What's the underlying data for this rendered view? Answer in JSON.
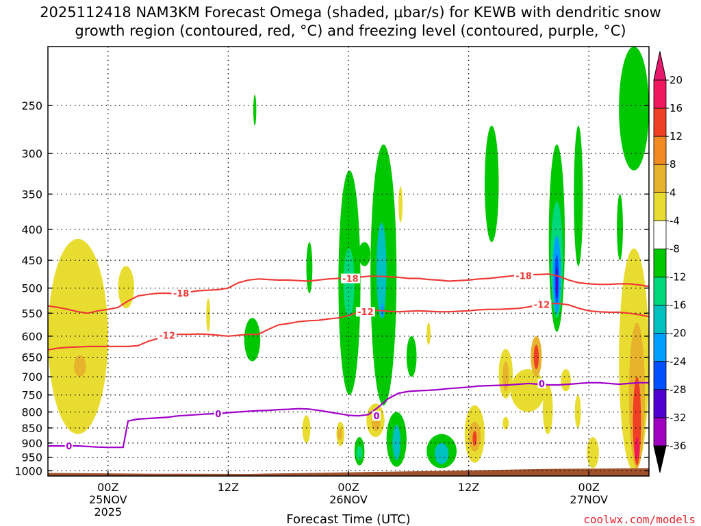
{
  "title_line1": "2025112418 NAM3KM Forecast Omega (shaded, μbar/s) for KEWB with dendritic snow",
  "title_line2": "growth region (contoured, red, °C) and freezing level (contoured, purple, °C)",
  "credit": "coolwx.com/models",
  "chart_data": {
    "type": "heatmap",
    "title": "2025112418 NAM3KM Forecast Omega (shaded, μbar/s) for KEWB with dendritic snow growth region (contoured, red, °C) and freezing level (contoured, purple, °C)",
    "xlabel": "Forecast Time (UTC)",
    "ylabel": "",
    "x_unit": "forecast hour from 2025112418",
    "xlim": [
      0,
      60
    ],
    "y_scale": "log (pressure, hPa)",
    "ylim": [
      1020,
      200
    ],
    "grid": true,
    "x_ticks": [
      {
        "x": 6,
        "label": "00Z",
        "sub": "25NOV",
        "sub2": "2025"
      },
      {
        "x": 18,
        "label": "12Z",
        "sub": "",
        "sub2": ""
      },
      {
        "x": 30,
        "label": "00Z",
        "sub": "26NOV",
        "sub2": ""
      },
      {
        "x": 42,
        "label": "12Z",
        "sub": "",
        "sub2": ""
      },
      {
        "x": 54,
        "label": "00Z",
        "sub": "27NOV",
        "sub2": ""
      }
    ],
    "y_ticks": [
      250,
      300,
      350,
      400,
      450,
      500,
      550,
      600,
      650,
      700,
      750,
      800,
      850,
      900,
      950,
      1000
    ],
    "colorbar": {
      "unit": "μbar/s",
      "ticks": [
        "20",
        "16",
        "12",
        "8",
        "4",
        "-4",
        "-8",
        "-12",
        "-16",
        "-20",
        "-24",
        "-28",
        "-32",
        "-36"
      ],
      "colors": [
        "#f0185c",
        "#ef4026",
        "#f28a22",
        "#e7b22c",
        "#e8dc30",
        "#ffffff",
        "#00c800",
        "#00d87a",
        "#00c0c0",
        "#00a0ff",
        "#0050ff",
        "#5000d0",
        "#a000c0",
        "#b4b4b4"
      ],
      "top_arrow_color": "#e8186c",
      "bottom_arrow_color": "#000000"
    },
    "series": [
      {
        "name": "-18",
        "color": "#ee3a36",
        "x": [
          0,
          1,
          2,
          3,
          4,
          5,
          6,
          7,
          8,
          9,
          10,
          11,
          12,
          13,
          14,
          15,
          16,
          17,
          18,
          19,
          20,
          21,
          22,
          23,
          24,
          25,
          26,
          27,
          28,
          29,
          30,
          31,
          32,
          33,
          34,
          35,
          36,
          37,
          38,
          39,
          40,
          41,
          42,
          43,
          44,
          45,
          46,
          47,
          48,
          49,
          50,
          51,
          52,
          53,
          54,
          55,
          56,
          57,
          58,
          59,
          60
        ],
        "y": [
          535,
          538,
          542,
          547,
          550,
          545,
          542,
          538,
          525,
          515,
          512,
          510,
          510,
          511,
          508,
          505,
          504,
          503,
          500,
          490,
          485,
          483,
          484,
          485,
          485,
          486,
          487,
          485,
          483,
          482,
          482,
          480,
          478,
          478,
          479,
          480,
          482,
          482,
          484,
          485,
          487,
          486,
          485,
          483,
          482,
          480,
          478,
          476,
          475,
          475,
          474,
          478,
          485,
          490,
          492,
          493,
          493,
          492,
          492,
          494,
          497
        ]
      },
      {
        "name": "-12",
        "color": "#ee3a36",
        "x": [
          0,
          1,
          2,
          3,
          4,
          5,
          6,
          7,
          8,
          9,
          10,
          11,
          12,
          13,
          14,
          15,
          16,
          17,
          18,
          19,
          20,
          21,
          22,
          23,
          24,
          25,
          26,
          27,
          28,
          29,
          30,
          31,
          32,
          33,
          34,
          35,
          36,
          37,
          38,
          39,
          40,
          41,
          42,
          43,
          44,
          45,
          46,
          47,
          48,
          49,
          50,
          51,
          52,
          53,
          54,
          55,
          56,
          57,
          58,
          59,
          60
        ],
        "y": [
          632,
          628,
          626,
          625,
          624,
          624,
          624,
          624,
          624,
          622,
          612,
          605,
          598,
          596,
          596,
          595,
          596,
          598,
          600,
          598,
          596,
          596,
          585,
          575,
          572,
          568,
          566,
          565,
          562,
          560,
          555,
          548,
          545,
          544,
          546,
          547,
          546,
          545,
          546,
          547,
          547,
          546,
          545,
          543,
          542,
          542,
          541,
          540,
          537,
          533,
          530,
          530,
          533,
          540,
          545,
          547,
          548,
          548,
          550,
          553,
          557
        ]
      },
      {
        "name": "0",
        "color": "#a000c8",
        "x": [
          0,
          1,
          2,
          3,
          4,
          5,
          6,
          7,
          7.5,
          8,
          9,
          10,
          11,
          12,
          13,
          14,
          15,
          16,
          17,
          18,
          19,
          20,
          21,
          22,
          23,
          24,
          25,
          26,
          27,
          28,
          29,
          30,
          31,
          32,
          33,
          34,
          35,
          36,
          37,
          38,
          39,
          40,
          41,
          42,
          43,
          44,
          45,
          46,
          47,
          48,
          49,
          50,
          51,
          52,
          53,
          54,
          55,
          56,
          57,
          58,
          59,
          60
        ],
        "y": [
          910,
          910,
          910,
          910,
          912,
          914,
          915,
          915,
          915,
          828,
          822,
          820,
          818,
          816,
          812,
          810,
          808,
          806,
          805,
          802,
          800,
          798,
          796,
          795,
          793,
          792,
          790,
          791,
          795,
          800,
          805,
          810,
          812,
          808,
          785,
          760,
          745,
          740,
          738,
          737,
          735,
          732,
          730,
          728,
          725,
          724,
          723,
          722,
          720,
          718,
          720,
          722,
          722,
          720,
          718,
          716,
          716,
          718,
          720,
          718,
          716,
          716
        ]
      }
    ],
    "contour_labels": [
      {
        "series": "-18",
        "text": "-18",
        "x": 13.3,
        "y": 510
      },
      {
        "series": "-18",
        "text": "-18",
        "x": 30.2,
        "y": 482
      },
      {
        "series": "-18",
        "text": "-18",
        "x": 47.5,
        "y": 477
      },
      {
        "series": "-12",
        "text": "-12",
        "x": 11.9,
        "y": 598
      },
      {
        "series": "-12",
        "text": "-12",
        "x": 31.7,
        "y": 547
      },
      {
        "series": "-12",
        "text": "-12",
        "x": 49.3,
        "y": 532
      },
      {
        "series": "0",
        "text": "0",
        "x": 2.1,
        "y": 910
      },
      {
        "series": "0",
        "text": "0",
        "x": 17.0,
        "y": 805
      },
      {
        "series": "0",
        "text": "0",
        "x": 32.8,
        "y": 812
      },
      {
        "series": "0",
        "text": "0",
        "x": 49.3,
        "y": 718
      }
    ],
    "omega_regions": [
      {
        "color": "#e8dc30",
        "x0": 0.0,
        "x1": 6.0,
        "y0": 415,
        "y1": 870
      },
      {
        "color": "#e7b22c",
        "x0": 2.6,
        "x1": 3.8,
        "y0": 645,
        "y1": 700
      },
      {
        "color": "#e8dc30",
        "x0": 7.0,
        "x1": 8.6,
        "y0": 460,
        "y1": 540
      },
      {
        "color": "#e8dc30",
        "x0": 15.8,
        "x1": 16.2,
        "y0": 520,
        "y1": 590
      },
      {
        "color": "#00c800",
        "x0": 20.5,
        "x1": 20.8,
        "y0": 240,
        "y1": 270
      },
      {
        "color": "#00c800",
        "x0": 19.6,
        "x1": 21.2,
        "y0": 560,
        "y1": 660
      },
      {
        "color": "#00c800",
        "x0": 25.8,
        "x1": 26.4,
        "y0": 420,
        "y1": 510
      },
      {
        "color": "#00c800",
        "x0": 29.0,
        "x1": 31.2,
        "y0": 320,
        "y1": 750
      },
      {
        "color": "#00d87a",
        "x0": 29.5,
        "x1": 30.6,
        "y0": 430,
        "y1": 560
      },
      {
        "color": "#00c800",
        "x0": 31.0,
        "x1": 32.2,
        "y0": 420,
        "y1": 460
      },
      {
        "color": "#00c800",
        "x0": 32.2,
        "x1": 34.8,
        "y0": 290,
        "y1": 780
      },
      {
        "color": "#00c0c0",
        "x0": 32.8,
        "x1": 33.8,
        "y0": 390,
        "y1": 560
      },
      {
        "color": "#00a0ff",
        "x0": 33.2,
        "x1": 33.6,
        "y0": 530,
        "y1": 560
      },
      {
        "color": "#e8dc30",
        "x0": 35.0,
        "x1": 35.4,
        "y0": 340,
        "y1": 390
      },
      {
        "color": "#00c800",
        "x0": 35.8,
        "x1": 36.8,
        "y0": 600,
        "y1": 700
      },
      {
        "color": "#e8dc30",
        "x0": 37.8,
        "x1": 38.2,
        "y0": 570,
        "y1": 620
      },
      {
        "color": "#00c800",
        "x0": 43.6,
        "x1": 45.0,
        "y0": 270,
        "y1": 420
      },
      {
        "color": "#00c800",
        "x0": 50.0,
        "x1": 51.6,
        "y0": 290,
        "y1": 590
      },
      {
        "color": "#00d87a",
        "x0": 50.2,
        "x1": 51.4,
        "y0": 360,
        "y1": 560
      },
      {
        "color": "#00a0ff",
        "x0": 50.4,
        "x1": 51.2,
        "y0": 410,
        "y1": 550
      },
      {
        "color": "#0050ff",
        "x0": 50.6,
        "x1": 51.0,
        "y0": 440,
        "y1": 530
      },
      {
        "color": "#5000d0",
        "x0": 50.7,
        "x1": 50.9,
        "y0": 460,
        "y1": 520
      },
      {
        "color": "#00c800",
        "x0": 52.5,
        "x1": 53.4,
        "y0": 270,
        "y1": 460
      },
      {
        "color": "#00c800",
        "x0": 56.8,
        "x1": 57.4,
        "y0": 350,
        "y1": 450
      },
      {
        "color": "#00c800",
        "x0": 57.0,
        "x1": 60.0,
        "y0": 200,
        "y1": 320
      },
      {
        "color": "#e8dc30",
        "x0": 25.4,
        "x1": 26.2,
        "y0": 810,
        "y1": 900
      },
      {
        "color": "#e8dc30",
        "x0": 28.8,
        "x1": 29.6,
        "y0": 830,
        "y1": 910
      },
      {
        "color": "#e7b22c",
        "x0": 28.9,
        "x1": 29.4,
        "y0": 850,
        "y1": 890
      },
      {
        "color": "#00c800",
        "x0": 30.6,
        "x1": 31.6,
        "y0": 880,
        "y1": 980
      },
      {
        "color": "#00d87a",
        "x0": 30.8,
        "x1": 31.4,
        "y0": 910,
        "y1": 960
      },
      {
        "color": "#e8dc30",
        "x0": 31.8,
        "x1": 33.6,
        "y0": 775,
        "y1": 880
      },
      {
        "color": "#e7b22c",
        "x0": 32.3,
        "x1": 33.2,
        "y0": 800,
        "y1": 860
      },
      {
        "color": "#00c800",
        "x0": 33.8,
        "x1": 35.8,
        "y0": 800,
        "y1": 985
      },
      {
        "color": "#00c0c0",
        "x0": 34.4,
        "x1": 35.2,
        "y0": 840,
        "y1": 960
      },
      {
        "color": "#00c800",
        "x0": 37.8,
        "x1": 40.8,
        "y0": 870,
        "y1": 990
      },
      {
        "color": "#00c0c0",
        "x0": 38.6,
        "x1": 40.0,
        "y0": 900,
        "y1": 975
      },
      {
        "color": "#e8dc30",
        "x0": 41.6,
        "x1": 43.6,
        "y0": 780,
        "y1": 970
      },
      {
        "color": "#e7b22c",
        "x0": 42.0,
        "x1": 43.2,
        "y0": 830,
        "y1": 930
      },
      {
        "color": "#ef4026",
        "x0": 42.4,
        "x1": 42.8,
        "y0": 860,
        "y1": 910
      },
      {
        "color": "#e8dc30",
        "x0": 45.0,
        "x1": 46.4,
        "y0": 630,
        "y1": 760
      },
      {
        "color": "#e7b22c",
        "x0": 45.4,
        "x1": 46.0,
        "y0": 660,
        "y1": 740
      },
      {
        "color": "#e8dc30",
        "x0": 46.2,
        "x1": 49.6,
        "y0": 680,
        "y1": 800
      },
      {
        "color": "#e7b22c",
        "x0": 48.2,
        "x1": 49.3,
        "y0": 600,
        "y1": 700
      },
      {
        "color": "#ef4026",
        "x0": 48.5,
        "x1": 49.0,
        "y0": 620,
        "y1": 680
      },
      {
        "color": "#e8dc30",
        "x0": 49.4,
        "x1": 50.4,
        "y0": 720,
        "y1": 870
      },
      {
        "color": "#e8dc30",
        "x0": 51.2,
        "x1": 52.2,
        "y0": 680,
        "y1": 740
      },
      {
        "color": "#e8dc30",
        "x0": 52.6,
        "x1": 53.2,
        "y0": 750,
        "y1": 850
      },
      {
        "color": "#e8dc30",
        "x0": 45.4,
        "x1": 46.0,
        "y0": 815,
        "y1": 855
      },
      {
        "color": "#e8dc30",
        "x0": 53.8,
        "x1": 55.0,
        "y0": 880,
        "y1": 990
      },
      {
        "color": "#e8dc30",
        "x0": 57.0,
        "x1": 60.0,
        "y0": 430,
        "y1": 1000
      },
      {
        "color": "#e7b22c",
        "x0": 58.0,
        "x1": 59.6,
        "y0": 570,
        "y1": 990
      },
      {
        "color": "#ef4026",
        "x0": 58.4,
        "x1": 59.2,
        "y0": 700,
        "y1": 980
      },
      {
        "color": "#f0185c",
        "x0": 58.6,
        "x1": 59.0,
        "y0": 880,
        "y1": 960
      }
    ],
    "terrain": {
      "color": "#a0522d",
      "x": [
        0,
        10,
        20,
        30,
        40,
        50,
        60
      ],
      "y": [
        1008,
        1011,
        1012,
        1006,
        1000,
        993,
        990
      ]
    }
  }
}
